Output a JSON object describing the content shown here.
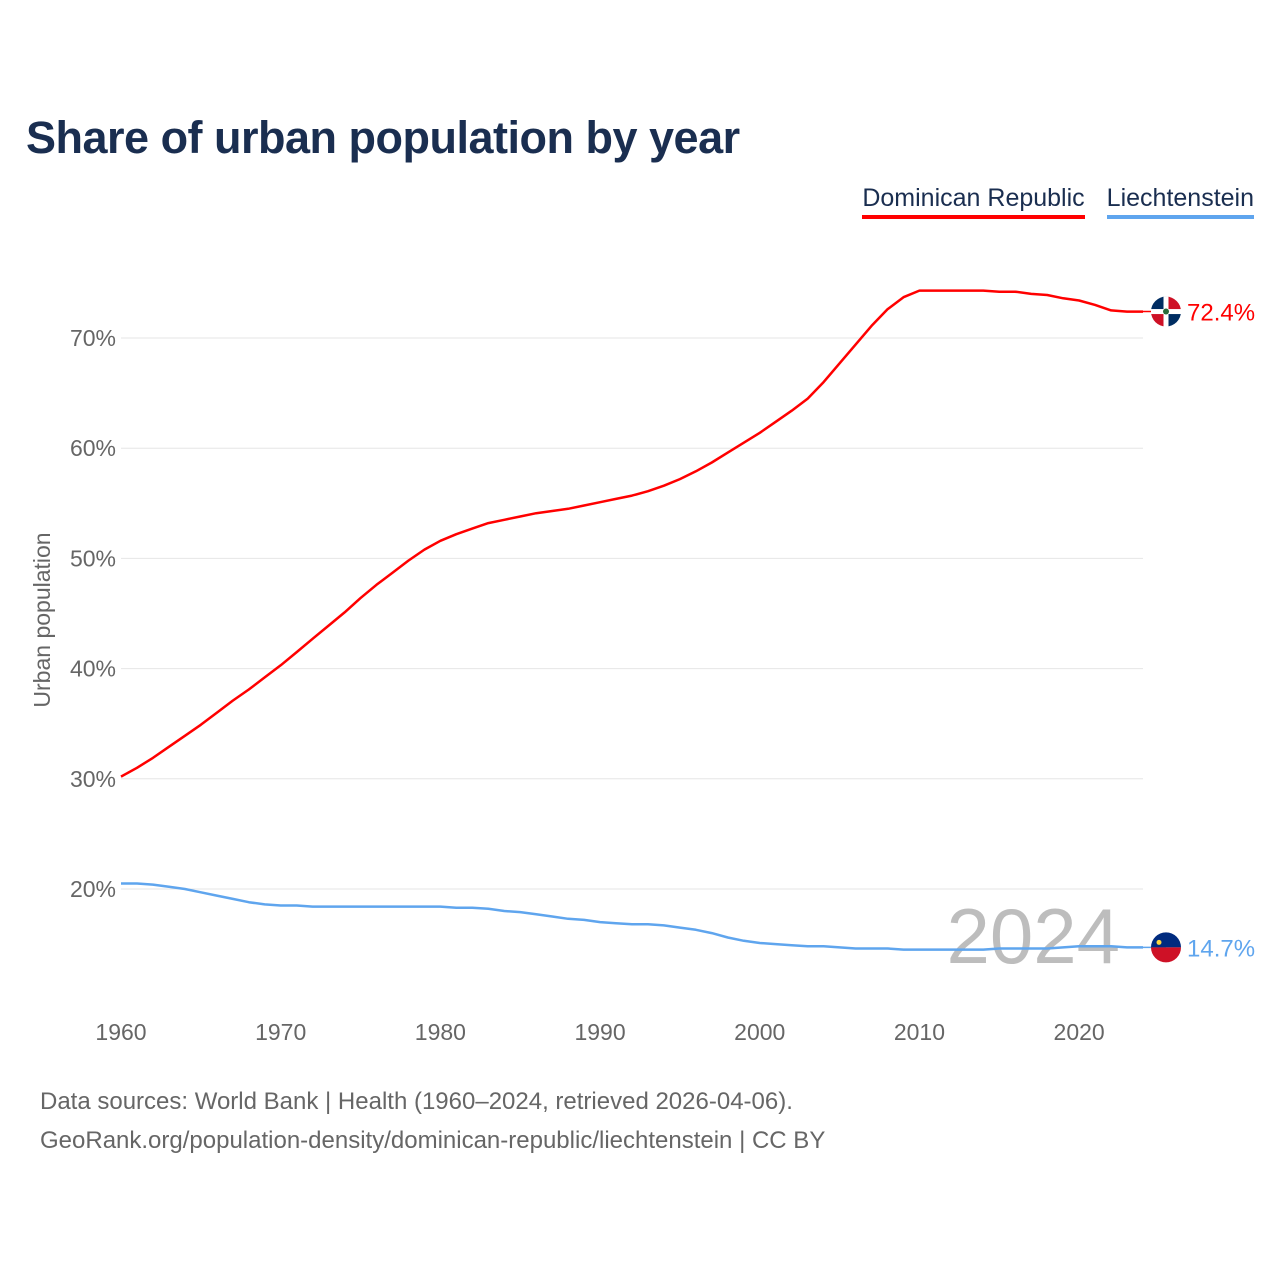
{
  "title": "Share of urban population by year",
  "legend": [
    {
      "label": "Dominican Republic",
      "color": "#ff0000"
    },
    {
      "label": "Liechtenstein",
      "color": "#5fa5ee"
    }
  ],
  "footer": {
    "line1": "Data sources: World Bank | Health (1960–2024, retrieved 2026-04-06).",
    "line2": "GeoRank.org/population-density/dominican-republic/liechtenstein | CC BY"
  },
  "chart_data": {
    "type": "line",
    "title": "Share of urban population by year",
    "xlabel": "",
    "ylabel": "Urban population",
    "xlim": [
      1960,
      2024
    ],
    "ylim": [
      10,
      77
    ],
    "x_ticks": [
      "1960",
      "1970",
      "1980",
      "1990",
      "2000",
      "2010",
      "2020"
    ],
    "y_ticks": [
      "20%",
      "30%",
      "40%",
      "50%",
      "60%",
      "70%"
    ],
    "y_tick_values": [
      20,
      30,
      40,
      50,
      60,
      70
    ],
    "grid": true,
    "year_watermark": "2024",
    "x_start": 1960,
    "series": [
      {
        "name": "Dominican Republic",
        "color": "#ff0000",
        "end_label": "72.4%",
        "values": [
          30.2,
          31.0,
          31.9,
          32.9,
          33.9,
          34.9,
          36.0,
          37.1,
          38.1,
          39.2,
          40.3,
          41.5,
          42.7,
          43.9,
          45.1,
          46.4,
          47.6,
          48.7,
          49.8,
          50.8,
          51.6,
          52.2,
          52.7,
          53.2,
          53.5,
          53.8,
          54.1,
          54.3,
          54.5,
          54.8,
          55.1,
          55.4,
          55.7,
          56.1,
          56.6,
          57.2,
          57.9,
          58.7,
          59.6,
          60.5,
          61.4,
          62.4,
          63.4,
          64.5,
          66.0,
          67.7,
          69.4,
          71.1,
          72.6,
          73.7,
          74.3,
          74.3,
          74.3,
          74.3,
          74.3,
          74.2,
          74.2,
          74.0,
          73.9,
          73.6,
          73.4,
          73.0,
          72.5,
          72.4,
          72.4
        ]
      },
      {
        "name": "Liechtenstein",
        "color": "#5fa5ee",
        "end_label": "14.7%",
        "values": [
          20.5,
          20.5,
          20.4,
          20.2,
          20.0,
          19.7,
          19.4,
          19.1,
          18.8,
          18.6,
          18.5,
          18.5,
          18.4,
          18.4,
          18.4,
          18.4,
          18.4,
          18.4,
          18.4,
          18.4,
          18.4,
          18.3,
          18.3,
          18.2,
          18.0,
          17.9,
          17.7,
          17.5,
          17.3,
          17.2,
          17.0,
          16.9,
          16.8,
          16.8,
          16.7,
          16.5,
          16.3,
          16.0,
          15.6,
          15.3,
          15.1,
          15.0,
          14.9,
          14.8,
          14.8,
          14.7,
          14.6,
          14.6,
          14.6,
          14.5,
          14.5,
          14.5,
          14.5,
          14.5,
          14.5,
          14.6,
          14.6,
          14.6,
          14.6,
          14.7,
          14.8,
          14.8,
          14.8,
          14.7,
          14.7
        ]
      }
    ]
  }
}
